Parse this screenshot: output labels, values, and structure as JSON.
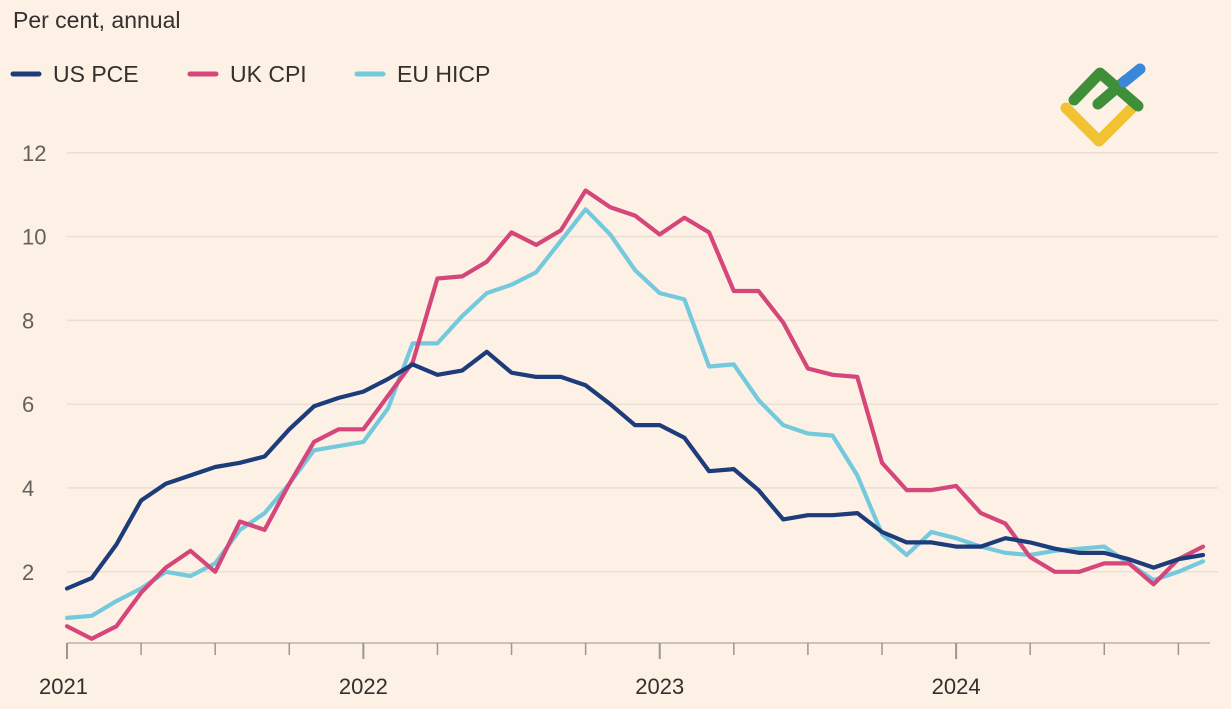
{
  "chart_data": {
    "type": "line",
    "title": "",
    "ylabel": "Per cent, annual",
    "xlabel": "",
    "ylim": [
      0.3,
      12.4
    ],
    "yticks": [
      2,
      4,
      6,
      8,
      10,
      12
    ],
    "xlim": [
      2021.0,
      2024.85
    ],
    "xticks": [
      {
        "value": 2021.0,
        "label": "2021"
      },
      {
        "value": 2022.0,
        "label": "2022"
      },
      {
        "value": 2023.0,
        "label": "2023"
      },
      {
        "value": 2024.0,
        "label": "2024"
      }
    ],
    "grid": true,
    "legend_position": "top-left",
    "x_start": 2021.0,
    "x_step": 0.08333,
    "series": [
      {
        "name": "US PCE",
        "color": "#1d3c7a",
        "values": [
          1.6,
          1.85,
          2.65,
          3.7,
          4.1,
          4.3,
          4.5,
          4.6,
          4.75,
          5.4,
          5.95,
          6.15,
          6.3,
          6.6,
          6.95,
          6.7,
          6.8,
          7.25,
          6.75,
          6.65,
          6.65,
          6.45,
          6.0,
          5.5,
          5.5,
          5.2,
          4.4,
          4.45,
          3.95,
          3.25,
          3.35,
          3.35,
          3.4,
          2.95,
          2.7,
          2.7,
          2.6,
          2.6,
          2.8,
          2.7,
          2.55,
          2.45,
          2.45,
          2.3,
          2.1,
          2.3,
          2.4
        ]
      },
      {
        "name": "UK CPI",
        "color": "#d5467a",
        "values": [
          0.7,
          0.4,
          0.7,
          1.5,
          2.1,
          2.5,
          2.0,
          3.2,
          3.0,
          4.1,
          5.1,
          5.4,
          5.4,
          6.2,
          7.0,
          9.0,
          9.05,
          9.4,
          10.1,
          9.8,
          10.15,
          11.1,
          10.7,
          10.5,
          10.05,
          10.45,
          10.1,
          8.7,
          8.7,
          7.95,
          6.85,
          6.7,
          6.65,
          4.6,
          3.95,
          3.95,
          4.05,
          3.4,
          3.15,
          2.35,
          2.0,
          2.0,
          2.2,
          2.2,
          1.7,
          2.3,
          2.6
        ]
      },
      {
        "name": "EU HICP",
        "color": "#74c9dd",
        "values": [
          0.9,
          0.95,
          1.3,
          1.6,
          2.0,
          1.9,
          2.2,
          3.0,
          3.4,
          4.1,
          4.9,
          5.0,
          5.1,
          5.9,
          7.45,
          7.45,
          8.1,
          8.65,
          8.85,
          9.15,
          9.9,
          10.65,
          10.05,
          9.2,
          8.65,
          8.5,
          6.9,
          6.95,
          6.1,
          5.5,
          5.3,
          5.25,
          4.3,
          2.9,
          2.4,
          2.95,
          2.8,
          2.6,
          2.45,
          2.4,
          2.5,
          2.55,
          2.6,
          2.2,
          1.8,
          2.0,
          2.25
        ]
      }
    ]
  },
  "logo": {
    "green": "#3f8f3a",
    "yellow": "#f1c232",
    "blue": "#3a86d8"
  }
}
